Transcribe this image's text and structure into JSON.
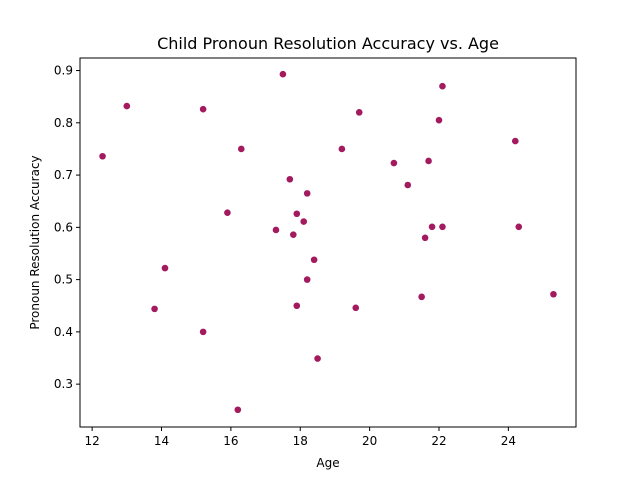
{
  "chart_data": {
    "type": "scatter",
    "title": "Child Pronoun Resolution Accuracy vs. Age",
    "xlabel": "Age",
    "ylabel": "Pronoun Resolution Accuracy",
    "xlim": [
      11.65,
      25.95
    ],
    "ylim": [
      0.218,
      0.924
    ],
    "xticks": [
      12,
      14,
      16,
      18,
      20,
      22,
      24
    ],
    "xtick_labels": [
      "12",
      "14",
      "16",
      "18",
      "20",
      "22",
      "24"
    ],
    "yticks": [
      0.3,
      0.4,
      0.5,
      0.6,
      0.7,
      0.8,
      0.9
    ],
    "ytick_labels": [
      "0.3",
      "0.4",
      "0.5",
      "0.6",
      "0.7",
      "0.8",
      "0.9"
    ],
    "grid": false,
    "legend": "none",
    "marker_color": "#a31a5f",
    "points": [
      {
        "x": 12.3,
        "y": 0.736
      },
      {
        "x": 13.0,
        "y": 0.832
      },
      {
        "x": 13.8,
        "y": 0.444
      },
      {
        "x": 14.1,
        "y": 0.522
      },
      {
        "x": 15.2,
        "y": 0.826
      },
      {
        "x": 15.2,
        "y": 0.4
      },
      {
        "x": 15.9,
        "y": 0.628
      },
      {
        "x": 16.2,
        "y": 0.251
      },
      {
        "x": 16.3,
        "y": 0.75
      },
      {
        "x": 17.3,
        "y": 0.595
      },
      {
        "x": 17.5,
        "y": 0.893
      },
      {
        "x": 17.7,
        "y": 0.692
      },
      {
        "x": 17.8,
        "y": 0.586
      },
      {
        "x": 17.9,
        "y": 0.626
      },
      {
        "x": 17.9,
        "y": 0.45
      },
      {
        "x": 18.1,
        "y": 0.611
      },
      {
        "x": 18.2,
        "y": 0.665
      },
      {
        "x": 18.2,
        "y": 0.5
      },
      {
        "x": 18.4,
        "y": 0.538
      },
      {
        "x": 18.5,
        "y": 0.349
      },
      {
        "x": 19.2,
        "y": 0.75
      },
      {
        "x": 19.6,
        "y": 0.446
      },
      {
        "x": 19.7,
        "y": 0.82
      },
      {
        "x": 20.7,
        "y": 0.723
      },
      {
        "x": 21.1,
        "y": 0.681
      },
      {
        "x": 21.5,
        "y": 0.467
      },
      {
        "x": 21.6,
        "y": 0.58
      },
      {
        "x": 21.7,
        "y": 0.727
      },
      {
        "x": 21.8,
        "y": 0.601
      },
      {
        "x": 22.0,
        "y": 0.805
      },
      {
        "x": 22.1,
        "y": 0.87
      },
      {
        "x": 22.1,
        "y": 0.601
      },
      {
        "x": 24.2,
        "y": 0.765
      },
      {
        "x": 24.3,
        "y": 0.601
      },
      {
        "x": 25.3,
        "y": 0.472
      }
    ]
  }
}
